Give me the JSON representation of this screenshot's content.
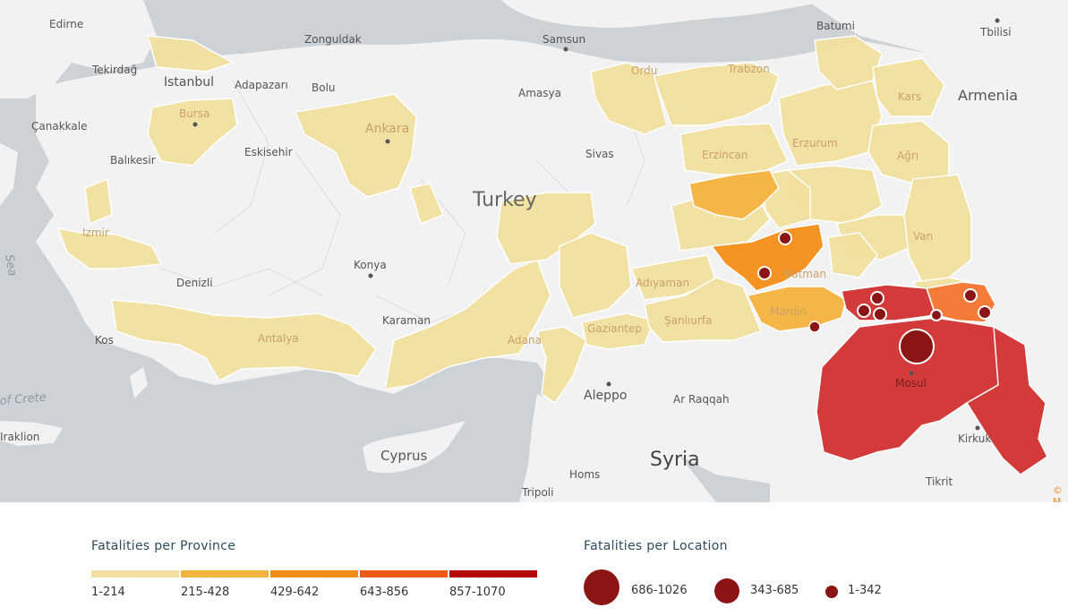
{
  "map": {
    "countries": {
      "turkey": "Turkey",
      "syria": "Syria",
      "armenia": "Armenia",
      "cyprus": "Cyprus"
    },
    "cities": {
      "edirne": "Edirne",
      "tekirdag": "Tekirdağ",
      "istanbul": "Istanbul",
      "adapazari": "Adapazarı",
      "zonguldak": "Zonguldak",
      "bolu": "Bolu",
      "samsun": "Samsun",
      "amasya": "Amasya",
      "ordu": "Ordu",
      "trabzon": "Trabzon",
      "batumi": "Batumi",
      "tbilisi": "Tbilisi",
      "canakkale": "Çanakkale",
      "bursa": "Bursa",
      "eskisehir": "Eskisehir",
      "ankara": "Ankara",
      "balikesir": "Balıkesir",
      "izmir": "Izmir",
      "sivas": "Sivas",
      "erzincan": "Erzincan",
      "erzurum": "Erzurum",
      "kars": "Kars",
      "agri": "Ağrı",
      "van": "Van",
      "konya": "Konya",
      "denizli": "Denizli",
      "karaman": "Karaman",
      "antalya": "Antalya",
      "kos": "Kos",
      "adana": "Adana",
      "adiyaman": "Adıyaman",
      "batman": "Batman",
      "mardin": "Mardin",
      "sanliurfa": "Şanlıurfa",
      "gaziantep": "Gaziantep",
      "aleppo": "Aleppo",
      "ar_raqqah": "Ar Raqqah",
      "mosul": "Mosul",
      "kirkuk": "Kirkuk",
      "tikrit": "Tikrit",
      "homs": "Homs",
      "tripoli": "Tripoli",
      "iraklion": "Iraklion"
    },
    "seas": {
      "aegean": "Sea",
      "crete": "of Crete"
    },
    "copyright": "© M"
  },
  "legend": {
    "province": {
      "title": "Fatalities per Province",
      "classes": [
        {
          "label": "1-214",
          "color": "#f0df9e"
        },
        {
          "label": "215-428",
          "color": "#f3b440"
        },
        {
          "label": "429-642",
          "color": "#f28b1a"
        },
        {
          "label": "643-856",
          "color": "#ec5a17"
        },
        {
          "label": "857-1070",
          "color": "#b3090b"
        }
      ]
    },
    "location": {
      "title": "Fatalities per Location",
      "classes": [
        {
          "label": "686-1026"
        },
        {
          "label": "343-685"
        },
        {
          "label": "1-342"
        }
      ]
    }
  },
  "colors": {
    "sea": "#cdd2d7",
    "land": "#f2f2f2",
    "class1": "#f0df9e",
    "class2": "#f6b547",
    "class3": "#f59422",
    "class4": "#f57b38",
    "class5": "#d33a3a",
    "location_marker": "#8b1414"
  }
}
